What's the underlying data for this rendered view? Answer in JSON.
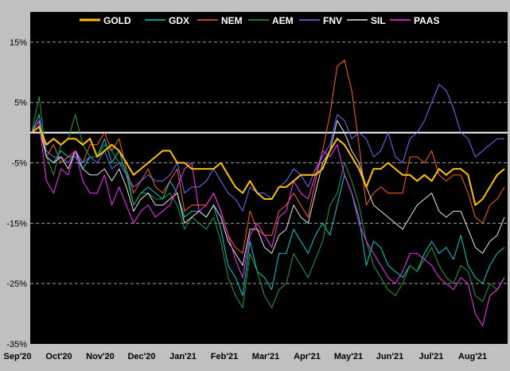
{
  "chart_data": {
    "type": "line",
    "title": "",
    "xlabel": "",
    "ylabel": "",
    "ylim": [
      -35,
      20
    ],
    "y_ticks": [
      15,
      5,
      -5,
      -15,
      -25,
      -35
    ],
    "y_tick_labels": [
      "15%",
      "5%",
      "-5%",
      "-15%",
      "-25%",
      "-35%"
    ],
    "x_tick_labels": [
      "Sep'20",
      "Oct'20",
      "Nov'20",
      "Dec'20",
      "Jan'21",
      "Feb'21",
      "Mar'21",
      "Apr'21",
      "May'21",
      "Jun'21",
      "Jul'21",
      "Aug'21"
    ],
    "reference_line": 0,
    "background": "#000000",
    "grid": "dashed-horizontal",
    "legend_position": "top",
    "series": [
      {
        "name": "GOLD",
        "color": "#ffc000",
        "width": 2,
        "values": [
          0,
          1,
          -2,
          -1,
          -2,
          -1,
          -1,
          -2,
          -1,
          -4,
          -3,
          -2,
          -3,
          -5,
          -7,
          -6,
          -5,
          -4,
          -3,
          -3,
          -5,
          -5,
          -6,
          -6,
          -6,
          -6,
          -5,
          -7,
          -9,
          -10,
          -8,
          -10,
          -11,
          -11,
          -9,
          -9,
          -8,
          -7,
          -7,
          -7,
          -6,
          -3,
          -1,
          -2,
          -4,
          -6,
          -9,
          -6,
          -6,
          -5,
          -6,
          -7,
          -7,
          -8,
          -7,
          -8,
          -6,
          -7,
          -6,
          -6,
          -7,
          -12,
          -11,
          -9,
          -7,
          -6
        ]
      },
      {
        "name": "GDX",
        "color": "#00d0d0",
        "width": 1,
        "values": [
          0,
          3,
          -4,
          -5,
          -3,
          -4,
          -4,
          -6,
          -4,
          -4,
          -1,
          -5,
          -3,
          -7,
          -12,
          -10,
          -9,
          -10,
          -11,
          -8,
          -10,
          -14,
          -13,
          -13,
          -14,
          -12,
          -16,
          -22,
          -24,
          -27,
          -18,
          -23,
          -24,
          -26,
          -20,
          -20,
          -16,
          -18,
          -20,
          -17,
          -15,
          -17,
          -12,
          -7,
          -10,
          -14,
          -22,
          -18,
          -19,
          -22,
          -23,
          -24,
          -22,
          -23,
          -20,
          -18,
          -20,
          -19,
          -21,
          -17,
          -22,
          -24,
          -25,
          -22,
          -20,
          -19
        ]
      },
      {
        "name": "NEM",
        "color": "#ff6020",
        "width": 1,
        "values": [
          0,
          2,
          -4,
          -2,
          -5,
          -4,
          -3,
          -5,
          -2,
          -2,
          0,
          -3,
          -1,
          -6,
          -10,
          -8,
          -6,
          -9,
          -10,
          -8,
          -6,
          -13,
          -12,
          -12,
          -12,
          -10,
          -13,
          -17,
          -19,
          -20,
          -13,
          -16,
          -17,
          -17,
          -13,
          -12,
          -10,
          -12,
          -14,
          -8,
          -3,
          3,
          11,
          12,
          7,
          -2,
          -12,
          -10,
          -9,
          -10,
          -10,
          -10,
          -4,
          -4,
          -5,
          -3,
          -7,
          -8,
          -7,
          -7,
          -10,
          -14,
          -15,
          -12,
          -11,
          -9
        ]
      },
      {
        "name": "AEM",
        "color": "#20a040",
        "width": 1,
        "values": [
          0,
          6,
          -4,
          -7,
          -2,
          -1,
          3,
          -2,
          -4,
          -4,
          -2,
          -3,
          -5,
          -6,
          -12,
          -10,
          -10,
          -11,
          -11,
          -10,
          -12,
          -16,
          -14,
          -15,
          -16,
          -14,
          -18,
          -24,
          -27,
          -29,
          -20,
          -23,
          -27,
          -29,
          -26,
          -25,
          -20,
          -22,
          -24,
          -21,
          -18,
          -12,
          -10,
          -5,
          -8,
          -12,
          -18,
          -22,
          -24,
          -26,
          -27,
          -25,
          -22,
          -23,
          -21,
          -19,
          -22,
          -24,
          -25,
          -22,
          -23,
          -27,
          -28,
          -25,
          -26,
          -24
        ]
      },
      {
        "name": "FNV",
        "color": "#7070ff",
        "width": 1,
        "values": [
          0,
          2,
          -3,
          -4,
          -4,
          -5,
          -3,
          -5,
          -4,
          -5,
          -3,
          -6,
          -5,
          -7,
          -9,
          -8,
          -7,
          -8,
          -8,
          -7,
          -5,
          -10,
          -9,
          -9,
          -8,
          -6,
          -8,
          -10,
          -11,
          -13,
          -9,
          -10,
          -10,
          -11,
          -9,
          -8,
          -6,
          -7,
          -9,
          -6,
          -4,
          -2,
          3,
          2,
          -1,
          0,
          -1,
          -4,
          -3,
          0,
          -4,
          -5,
          -1,
          0,
          2,
          5,
          8,
          7,
          4,
          0,
          -1,
          -4,
          -3,
          -2,
          -1,
          -1
        ]
      },
      {
        "name": "SIL",
        "color": "#e8e8e8",
        "width": 1,
        "values": [
          0,
          1,
          -4,
          -5,
          -4,
          -6,
          -3,
          -6,
          -7,
          -7,
          -6,
          -8,
          -6,
          -9,
          -13,
          -11,
          -10,
          -12,
          -12,
          -11,
          -10,
          -15,
          -14,
          -13,
          -14,
          -12,
          -14,
          -18,
          -20,
          -22,
          -16,
          -16,
          -19,
          -20,
          -17,
          -16,
          -12,
          -14,
          -15,
          -10,
          -5,
          -3,
          2,
          0,
          -3,
          -5,
          -9,
          -12,
          -13,
          -14,
          -15,
          -16,
          -14,
          -12,
          -11,
          -10,
          -13,
          -14,
          -13,
          -13,
          -16,
          -19,
          -20,
          -18,
          -17,
          -14
        ]
      },
      {
        "name": "PAAS",
        "color": "#ff30ff",
        "width": 1,
        "values": [
          0,
          2,
          -8,
          -10,
          -6,
          -7,
          -3,
          -8,
          -10,
          -10,
          -7,
          -12,
          -9,
          -12,
          -15,
          -13,
          -12,
          -14,
          -13,
          -12,
          -9,
          -6,
          -5,
          -13,
          -12,
          -10,
          -13,
          -17,
          -21,
          -24,
          -17,
          -15,
          -17,
          -19,
          -14,
          -13,
          -8,
          -10,
          -11,
          -7,
          -3,
          -4,
          -2,
          -7,
          -10,
          -15,
          -18,
          -20,
          -22,
          -24,
          -25,
          -23,
          -20,
          -20,
          -21,
          -22,
          -24,
          -25,
          -26,
          -24,
          -25,
          -30,
          -32,
          -27,
          -26,
          -24
        ]
      }
    ]
  }
}
